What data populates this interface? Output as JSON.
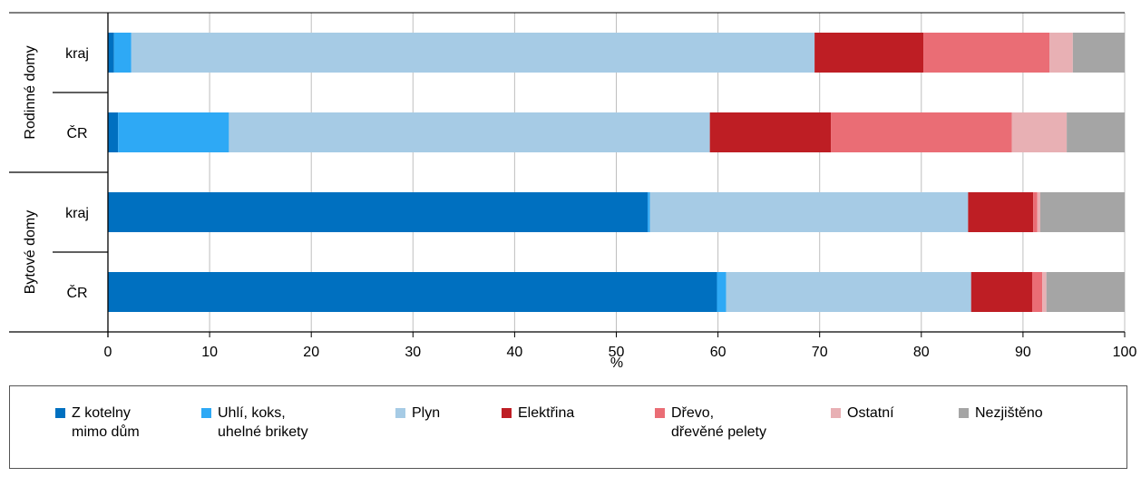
{
  "chart_data": {
    "type": "bar",
    "orientation": "horizontal",
    "stacked": true,
    "xlabel": "%",
    "xlim": [
      0,
      100
    ],
    "xticks": [
      0,
      10,
      20,
      30,
      40,
      50,
      60,
      70,
      80,
      90,
      100
    ],
    "grid": "vertical",
    "groups": [
      {
        "label": "Rodinné domy",
        "rows": [
          "kraj",
          "ČR"
        ]
      },
      {
        "label": "Bytové domy",
        "rows": [
          "kraj",
          "ČR"
        ]
      }
    ],
    "categories": [
      "kraj",
      "ČR",
      "kraj",
      "ČR"
    ],
    "series": [
      {
        "name": "Z kotelny\nmimo dům",
        "color": "#0070C0",
        "values": [
          0.6,
          1.0,
          53.1,
          59.9
        ]
      },
      {
        "name": "Uhlí, koks,\nuhelné brikety",
        "color": "#2EA9F5",
        "values": [
          1.7,
          10.9,
          0.2,
          0.9
        ]
      },
      {
        "name": "Plyn",
        "color": "#A6CBE5",
        "values": [
          67.2,
          47.3,
          31.3,
          24.1
        ]
      },
      {
        "name": "Elektřina",
        "color": "#BE1E24",
        "values": [
          10.7,
          11.9,
          6.4,
          6.0
        ]
      },
      {
        "name": "Dřevo,\ndřevěné pelety",
        "color": "#EA6D75",
        "values": [
          12.4,
          17.8,
          0.4,
          1.0
        ]
      },
      {
        "name": "Ostatní",
        "color": "#E8B0B4",
        "values": [
          2.3,
          5.4,
          0.3,
          0.4
        ]
      },
      {
        "name": "Nezjištěno",
        "color": "#A5A5A5",
        "values": [
          5.1,
          5.7,
          8.3,
          7.7
        ]
      }
    ],
    "legend_position": "bottom"
  }
}
